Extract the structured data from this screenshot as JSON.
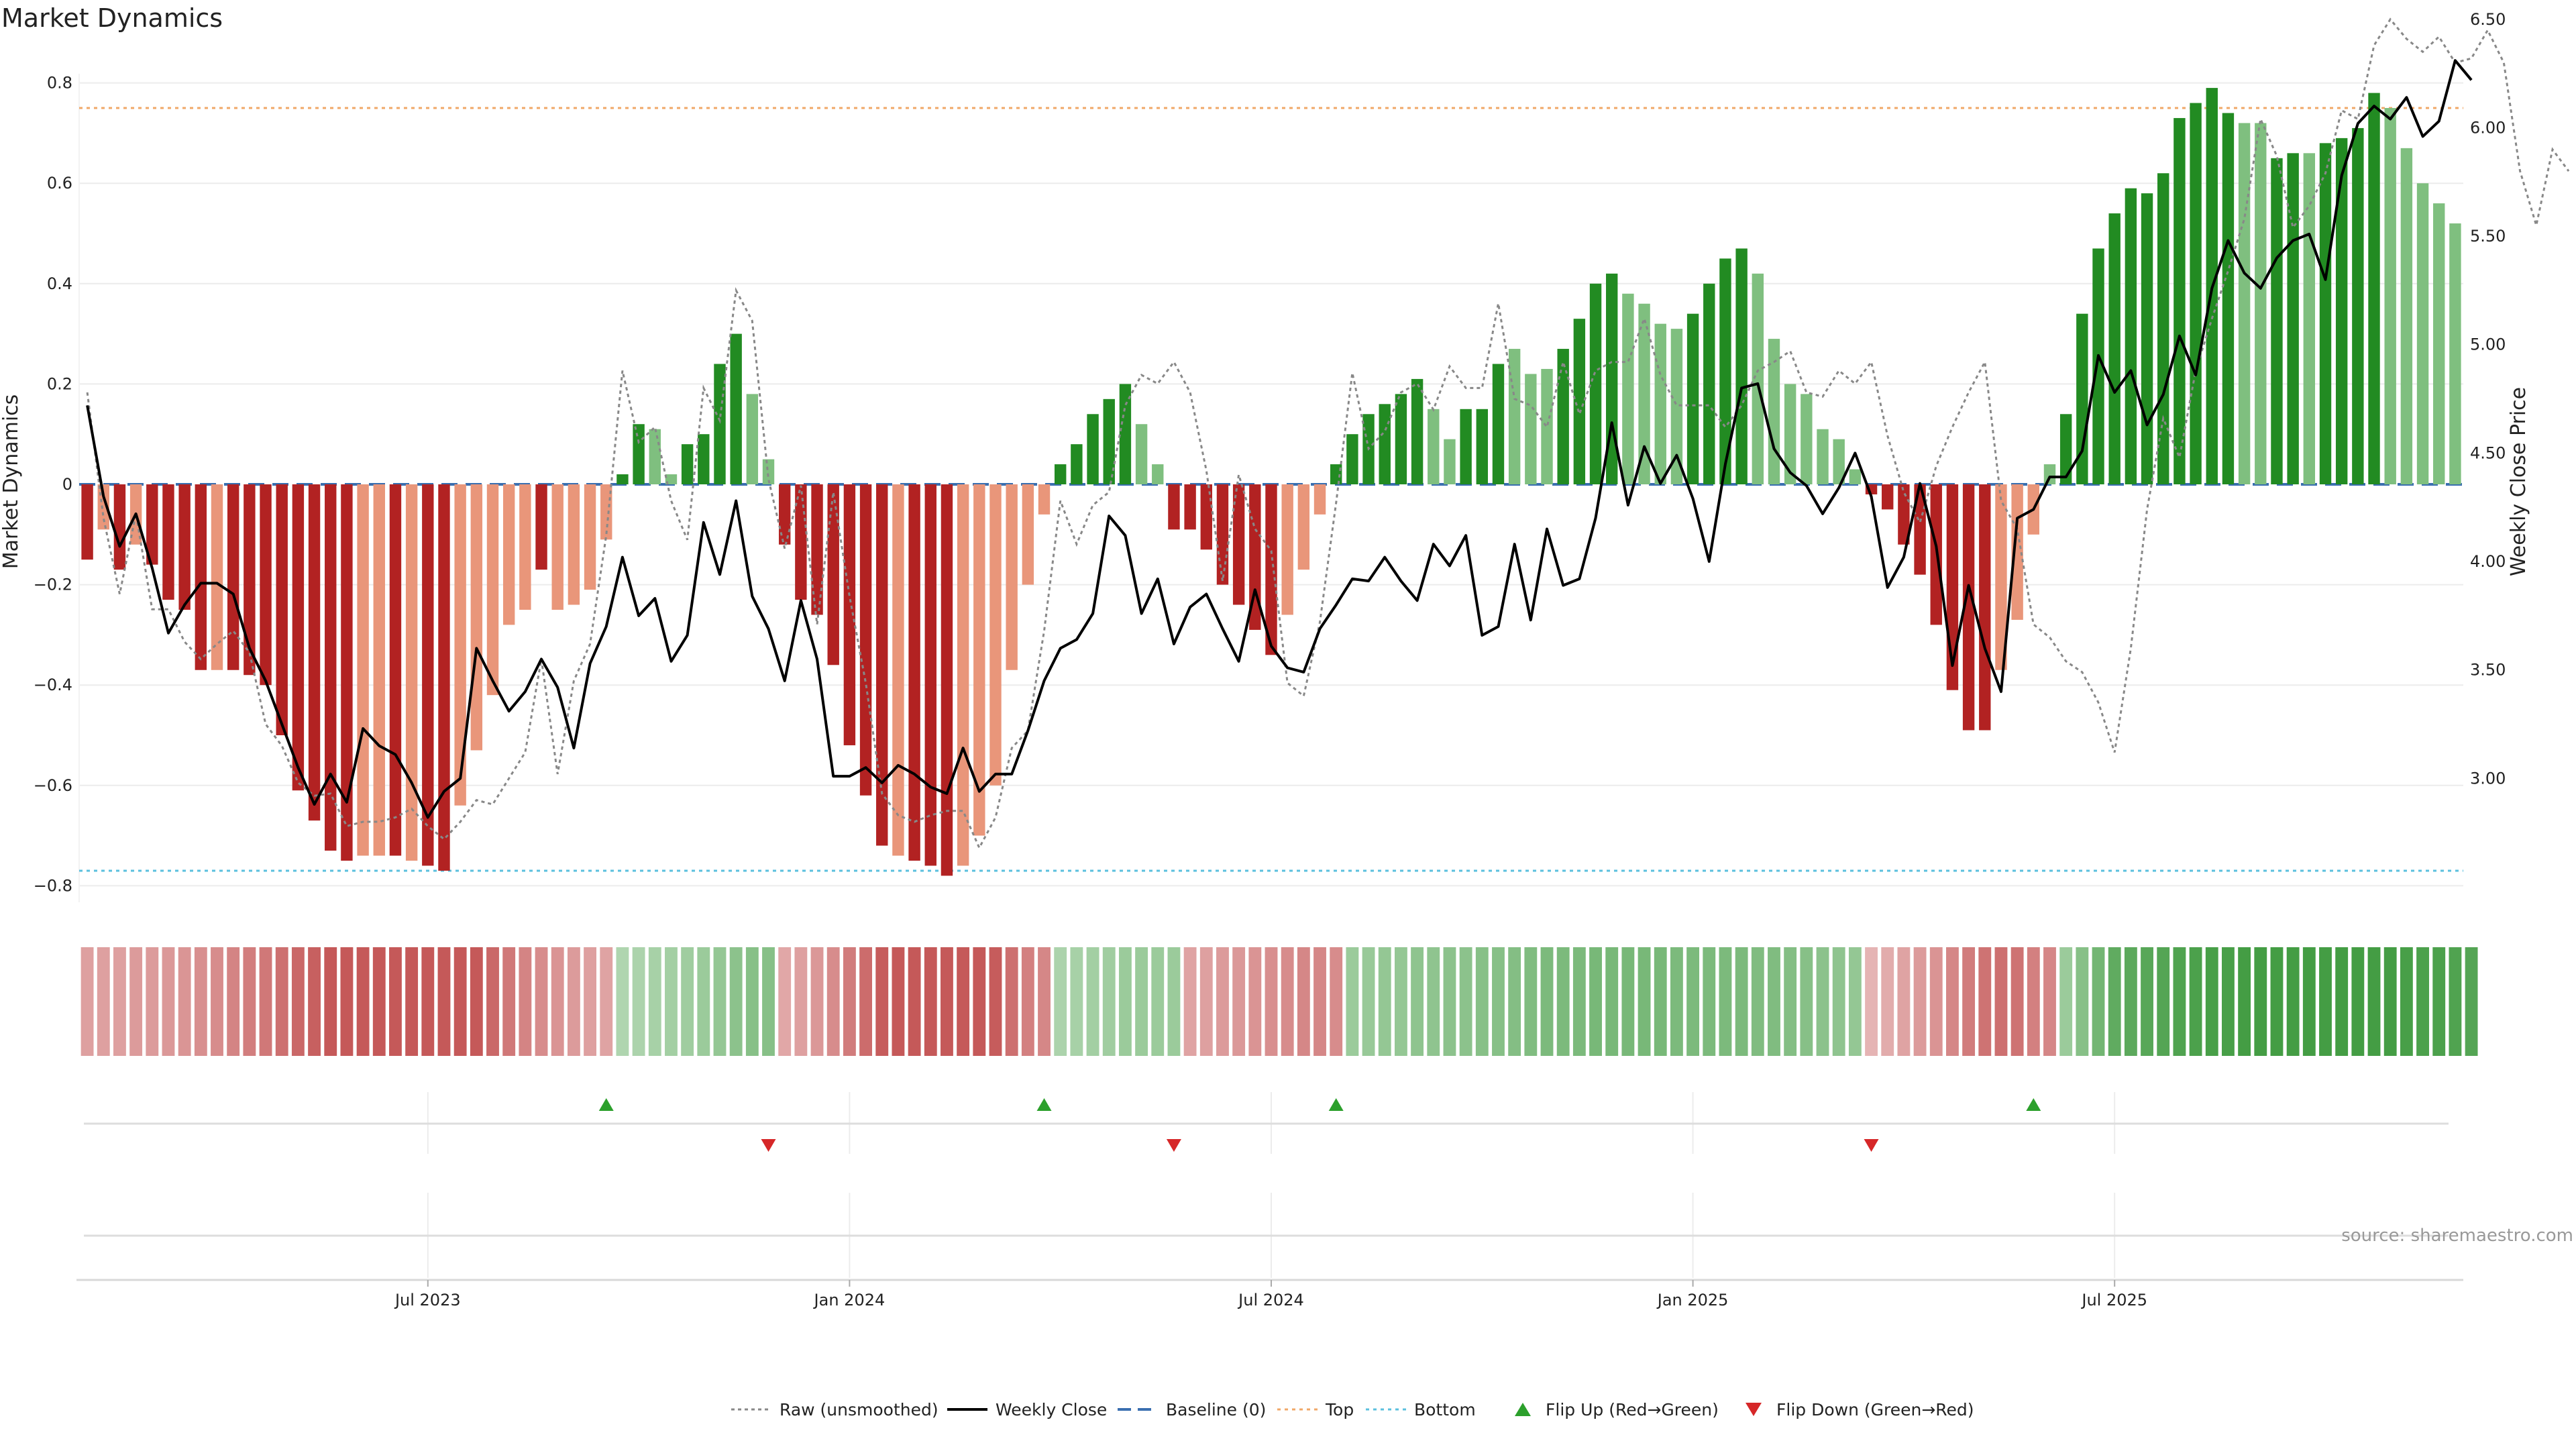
{
  "title": "Market Dynamics",
  "source_text": "source: sharemaestro.com",
  "chart_data": {
    "type": "bar",
    "title": "Market Dynamics",
    "ylabel": "Market Dynamics",
    "y2label": "Weekly Close Price",
    "ylim": [
      -0.85,
      0.85
    ],
    "y2lim": [
      2.5,
      6.6
    ],
    "yticks": [
      "0.8",
      "0.6",
      "0.4",
      "0.2",
      "0",
      "−0.2",
      "−0.4",
      "−0.6",
      "−0.8"
    ],
    "y2ticks": [
      "6.50",
      "6.00",
      "5.50",
      "5.00",
      "4.50",
      "4.00",
      "3.50",
      "3.00"
    ],
    "xticks": [
      "Jul 2023",
      "Jan 2024",
      "Jul 2024",
      "Jan 2025",
      "Jul 2025"
    ],
    "grid": true,
    "legend_position": "bottom-center",
    "top_level": 0.75,
    "bottom_level": -0.77,
    "baseline": 0,
    "colors": {
      "strong_red": "#b22222",
      "weak_red": "#e9967a",
      "strong_green": "#228b22",
      "weak_green": "#7fbf7f",
      "close": "#000000",
      "raw": "#888888",
      "baseline": "#3a6fb0",
      "top": "#f0a868",
      "bottom": "#5bc0de",
      "flip_up": "#2ca02c",
      "flip_down": "#d62728"
    },
    "bars": [
      -0.15,
      -0.09,
      -0.17,
      -0.12,
      -0.16,
      -0.23,
      -0.25,
      -0.37,
      -0.37,
      -0.37,
      -0.38,
      -0.4,
      -0.5,
      -0.61,
      -0.67,
      -0.73,
      -0.75,
      -0.74,
      -0.74,
      -0.74,
      -0.75,
      -0.76,
      -0.77,
      -0.64,
      -0.53,
      -0.42,
      -0.28,
      -0.25,
      -0.17,
      -0.25,
      -0.24,
      -0.21,
      -0.11,
      0.02,
      0.12,
      0.11,
      0.02,
      0.08,
      0.1,
      0.24,
      0.3,
      0.18,
      0.05,
      -0.12,
      -0.23,
      -0.26,
      -0.36,
      -0.52,
      -0.62,
      -0.72,
      -0.74,
      -0.75,
      -0.76,
      -0.78,
      -0.76,
      -0.7,
      -0.6,
      -0.37,
      -0.2,
      -0.06,
      0.04,
      0.08,
      0.14,
      0.17,
      0.2,
      0.12,
      0.04,
      -0.09,
      -0.09,
      -0.13,
      -0.2,
      -0.24,
      -0.29,
      -0.34,
      -0.26,
      -0.17,
      -0.06,
      0.04,
      0.1,
      0.14,
      0.16,
      0.18,
      0.21,
      0.15,
      0.09,
      0.15,
      0.15,
      0.24,
      0.27,
      0.22,
      0.23,
      0.27,
      0.33,
      0.4,
      0.42,
      0.38,
      0.36,
      0.32,
      0.31,
      0.34,
      0.4,
      0.45,
      0.47,
      0.42,
      0.29,
      0.2,
      0.18,
      0.11,
      0.09,
      0.03,
      -0.02,
      -0.05,
      -0.12,
      -0.18,
      -0.28,
      -0.41,
      -0.49,
      -0.49,
      -0.37,
      -0.27,
      -0.1,
      0.04,
      0.14,
      0.34,
      0.47,
      0.54,
      0.59,
      0.58,
      0.62,
      0.73,
      0.76,
      0.79,
      0.74,
      0.72,
      0.72,
      0.65,
      0.66,
      0.66,
      0.68,
      0.69,
      0.71,
      0.78,
      0.75,
      0.67,
      0.6,
      0.56,
      0.52
    ],
    "strength": [
      "s",
      "w",
      "s",
      "w",
      "s",
      "s",
      "s",
      "s",
      "w",
      "s",
      "s",
      "s",
      "s",
      "s",
      "s",
      "s",
      "s",
      "w",
      "w",
      "s",
      "w",
      "s",
      "s",
      "w",
      "w",
      "w",
      "w",
      "w",
      "s",
      "w",
      "w",
      "w",
      "w",
      "s",
      "s",
      "w",
      "w",
      "s",
      "s",
      "s",
      "s",
      "w",
      "w",
      "s",
      "s",
      "s",
      "s",
      "s",
      "s",
      "s",
      "w",
      "s",
      "s",
      "s",
      "w",
      "w",
      "w",
      "w",
      "w",
      "w",
      "s",
      "s",
      "s",
      "s",
      "s",
      "w",
      "w",
      "s",
      "s",
      "s",
      "s",
      "s",
      "s",
      "s",
      "w",
      "w",
      "w",
      "s",
      "s",
      "s",
      "s",
      "s",
      "s",
      "w",
      "w",
      "s",
      "s",
      "s",
      "w",
      "w",
      "w",
      "s",
      "s",
      "s",
      "s",
      "w",
      "w",
      "w",
      "w",
      "s",
      "s",
      "s",
      "s",
      "w",
      "w",
      "w",
      "w",
      "w",
      "w",
      "w",
      "s",
      "s",
      "s",
      "s",
      "s",
      "s",
      "s",
      "s",
      "w",
      "w",
      "w",
      "w",
      "s",
      "s",
      "s",
      "s",
      "s",
      "s",
      "s",
      "s",
      "s",
      "s",
      "s",
      "w",
      "w",
      "s",
      "s",
      "w",
      "s",
      "s",
      "s",
      "s",
      "w",
      "w",
      "w",
      "w"
    ],
    "close": [
      4.72,
      4.3,
      4.07,
      4.22,
      3.97,
      3.67,
      3.8,
      3.9,
      3.9,
      3.85,
      3.6,
      3.45,
      3.25,
      3.05,
      2.88,
      3.02,
      2.89,
      3.23,
      3.15,
      3.11,
      2.98,
      2.82,
      2.94,
      3.0,
      3.6,
      3.45,
      3.31,
      3.4,
      3.55,
      3.42,
      3.14,
      3.53,
      3.7,
      4.02,
      3.75,
      3.83,
      3.54,
      3.66,
      4.18,
      3.94,
      4.28,
      3.84,
      3.69,
      3.45,
      3.82,
      3.55,
      3.01,
      3.01,
      3.05,
      2.98,
      3.06,
      3.02,
      2.96,
      2.93,
      3.14,
      2.94,
      3.02,
      3.02,
      3.22,
      3.45,
      3.6,
      3.64,
      3.76,
      4.21,
      4.12,
      3.76,
      3.92,
      3.62,
      3.79,
      3.85,
      3.69,
      3.54,
      3.87,
      3.61,
      3.51,
      3.49,
      3.69,
      3.8,
      3.92,
      3.91,
      4.02,
      3.91,
      3.82,
      4.08,
      3.98,
      4.12,
      3.66,
      3.7,
      4.08,
      3.73,
      4.15,
      3.89,
      3.92,
      4.2,
      4.64,
      4.26,
      4.53,
      4.36,
      4.49,
      4.29,
      4.0,
      4.45,
      4.8,
      4.82,
      4.52,
      4.41,
      4.35,
      4.22,
      4.34,
      4.5,
      4.3,
      3.88,
      4.02,
      4.36,
      4.07,
      3.52,
      3.89,
      3.6,
      3.4,
      4.2,
      4.24,
      4.39,
      4.39,
      4.51,
      4.95,
      4.78,
      4.88,
      4.63,
      4.77,
      5.04,
      4.86,
      5.26,
      5.48,
      5.33,
      5.26,
      5.4,
      5.48,
      5.51,
      5.3,
      5.78,
      6.02,
      6.1,
      6.04,
      6.14,
      5.96,
      6.03,
      6.31,
      6.22
    ],
    "raw": [
      4.78,
      4.2,
      3.85,
      4.22,
      3.78,
      3.78,
      3.63,
      3.55,
      3.62,
      3.68,
      3.58,
      3.25,
      3.15,
      2.98,
      2.92,
      2.93,
      2.78,
      2.8,
      2.8,
      2.82,
      2.86,
      2.78,
      2.72,
      2.8,
      2.9,
      2.88,
      3.0,
      3.12,
      3.55,
      3.02,
      3.45,
      3.62,
      4.12,
      4.88,
      4.55,
      4.62,
      4.28,
      4.1,
      4.8,
      4.65,
      5.25,
      5.11,
      4.38,
      4.06,
      4.35,
      3.71,
      4.32,
      3.84,
      3.44,
      2.93,
      2.83,
      2.8,
      2.83,
      2.85,
      2.85,
      2.68,
      2.82,
      3.14,
      3.22,
      3.68,
      4.28,
      4.08,
      4.26,
      4.32,
      4.72,
      4.86,
      4.82,
      4.92,
      4.78,
      4.42,
      3.91,
      4.4,
      4.15,
      4.05,
      3.44,
      3.38,
      3.72,
      4.27,
      4.87,
      4.52,
      4.6,
      4.78,
      4.82,
      4.7,
      4.9,
      4.8,
      4.8,
      5.19,
      4.75,
      4.72,
      4.62,
      4.92,
      4.68,
      4.88,
      4.92,
      4.92,
      5.12,
      4.86,
      4.72,
      4.72,
      4.72,
      4.62,
      4.72,
      4.88,
      4.92,
      4.97,
      4.78,
      4.76,
      4.88,
      4.82,
      4.92,
      4.58,
      4.32,
      4.18,
      4.44,
      4.62,
      4.78,
      4.92,
      4.28,
      4.15,
      3.71,
      3.65,
      3.54,
      3.49,
      3.35,
      3.12,
      3.6,
      4.24,
      4.66,
      4.48,
      4.88,
      5.12,
      5.34,
      5.58,
      6.04,
      5.87,
      5.54,
      5.64,
      5.79,
      6.08,
      6.04,
      6.38,
      6.5,
      6.41,
      6.35,
      6.42,
      6.3,
      6.32,
      6.45,
      6.3,
      5.8,
      5.55,
      5.9,
      5.8
    ],
    "heat": [
      -0.28,
      -0.28,
      -0.28,
      -0.3,
      -0.3,
      -0.32,
      -0.33,
      -0.36,
      -0.38,
      -0.42,
      -0.45,
      -0.48,
      -0.52,
      -0.56,
      -0.6,
      -0.64,
      -0.66,
      -0.7,
      -0.72,
      -0.74,
      -0.75,
      -0.76,
      -0.74,
      -0.72,
      -0.66,
      -0.56,
      -0.48,
      -0.42,
      -0.38,
      -0.34,
      -0.3,
      -0.28,
      -0.26,
      0.2,
      0.22,
      0.24,
      0.26,
      0.28,
      0.3,
      0.34,
      0.38,
      0.4,
      0.4,
      -0.24,
      -0.28,
      -0.32,
      -0.38,
      -0.46,
      -0.54,
      -0.62,
      -0.68,
      -0.74,
      -0.76,
      -0.76,
      -0.74,
      -0.7,
      -0.62,
      -0.52,
      -0.44,
      -0.4,
      0.22,
      0.24,
      0.26,
      0.28,
      0.3,
      0.3,
      0.3,
      0.3,
      -0.26,
      -0.28,
      -0.3,
      -0.32,
      -0.34,
      -0.36,
      -0.38,
      -0.4,
      -0.4,
      -0.38,
      0.3,
      0.32,
      0.34,
      0.34,
      0.36,
      0.36,
      0.38,
      0.38,
      0.4,
      0.4,
      0.42,
      0.44,
      0.46,
      0.46,
      0.46,
      0.48,
      0.48,
      0.48,
      0.48,
      0.48,
      0.46,
      0.46,
      0.46,
      0.46,
      0.46,
      0.44,
      0.44,
      0.42,
      0.4,
      0.38,
      0.36,
      0.34,
      -0.18,
      -0.22,
      -0.26,
      -0.3,
      -0.34,
      -0.4,
      -0.46,
      -0.5,
      -0.52,
      -0.5,
      -0.44,
      -0.4,
      0.3,
      0.4,
      0.5,
      0.6,
      0.62,
      0.64,
      0.66,
      0.68,
      0.7,
      0.72,
      0.72,
      0.74,
      0.74,
      0.74,
      0.74,
      0.74,
      0.74,
      0.74,
      0.74,
      0.74,
      0.74,
      0.72,
      0.7,
      0.7,
      0.68,
      0.66
    ],
    "xtick_index": [
      21,
      47,
      73,
      99,
      125
    ],
    "flip_up_index": [
      32,
      59,
      77,
      120
    ],
    "flip_down_index": [
      42,
      67,
      110
    ],
    "legend": [
      {
        "label": "Raw (unsmoothed)",
        "style": "raw"
      },
      {
        "label": "Weekly Close",
        "style": "close"
      },
      {
        "label": "Baseline (0)",
        "style": "baseline"
      },
      {
        "label": "Top",
        "style": "top"
      },
      {
        "label": "Bottom",
        "style": "bottom"
      },
      {
        "label": "Flip Up (Red→Green)",
        "style": "flip_up"
      },
      {
        "label": "Flip Down (Green→Red)",
        "style": "flip_down"
      }
    ]
  }
}
